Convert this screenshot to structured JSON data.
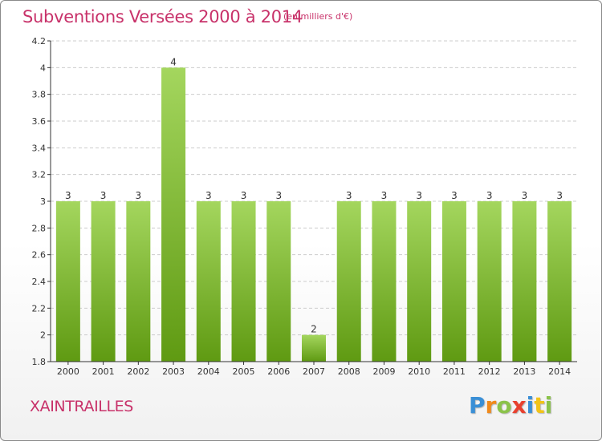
{
  "header": {
    "title": "Subventions Versées 2000 à 2014",
    "unit": "(en milliers d'€)"
  },
  "footer": {
    "commune": "XAINTRAILLES",
    "logo_letters": [
      {
        "ch": "P",
        "color": "#3a8fd6"
      },
      {
        "ch": "r",
        "color": "#f08a1c"
      },
      {
        "ch": "o",
        "color": "#8bc34a"
      },
      {
        "ch": "x",
        "color": "#e8412f"
      },
      {
        "ch": "i",
        "color": "#3a8fd6"
      },
      {
        "ch": "t",
        "color": "#f2c318"
      },
      {
        "ch": "i",
        "color": "#8bc34a"
      }
    ]
  },
  "colors": {
    "bar_top": "#a4d65e",
    "bar_bottom": "#5f9a12",
    "grid": "#cccccc",
    "axis": "#333333",
    "title": "#c8326a"
  },
  "chart_data": {
    "type": "bar",
    "title": "Subventions Versées 2000 à 2014",
    "subtitle": "(en milliers d'€)",
    "xlabel": "",
    "ylabel": "",
    "categories": [
      "2000",
      "2001",
      "2002",
      "2003",
      "2004",
      "2005",
      "2006",
      "2007",
      "2008",
      "2009",
      "2010",
      "2011",
      "2012",
      "2013",
      "2014"
    ],
    "values": [
      3,
      3,
      3,
      4,
      3,
      3,
      3,
      2,
      3,
      3,
      3,
      3,
      3,
      3,
      3
    ],
    "data_labels": [
      "3",
      "3",
      "3",
      "4",
      "3",
      "3",
      "3",
      "2",
      "3",
      "3",
      "3",
      "3",
      "3",
      "3",
      "3"
    ],
    "ylim": [
      1.8,
      4.2
    ],
    "yticks": [
      1.8,
      2,
      2.2,
      2.4,
      2.6,
      2.8,
      3,
      3.2,
      3.4,
      3.6,
      3.8,
      4,
      4.2
    ],
    "ytick_labels": [
      "1.8",
      "2",
      "2.2",
      "2.4",
      "2.6",
      "2.8",
      "3",
      "3.2",
      "3.4",
      "3.6",
      "3.8",
      "4",
      "4.2"
    ],
    "grid": true,
    "legend": "none"
  }
}
